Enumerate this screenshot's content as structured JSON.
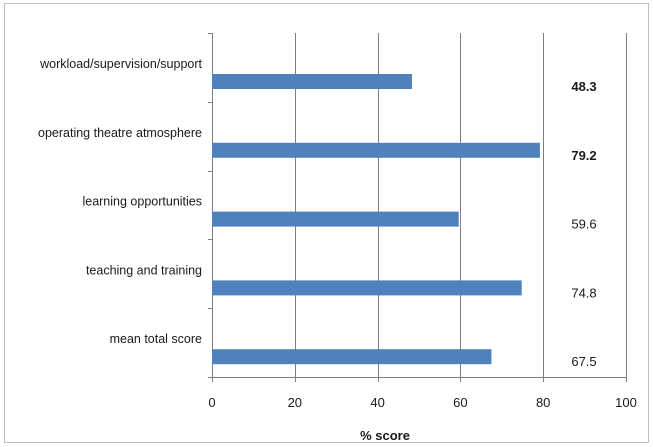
{
  "chart_data": {
    "type": "bar",
    "orientation": "horizontal",
    "categories": [
      "workload/supervision/support",
      "operating theatre atmosphere",
      "learning opportunities",
      "teaching and training",
      "mean total score"
    ],
    "values": [
      48.3,
      79.2,
      59.6,
      74.8,
      67.5
    ],
    "value_labels": [
      "48.3",
      "79.2",
      "59.6",
      "74.8",
      "67.5"
    ],
    "bold_value_labels": [
      true,
      true,
      false,
      false,
      false
    ],
    "xlabel": "% score",
    "ylabel": "",
    "title": "",
    "xlim": [
      0,
      100
    ],
    "xticks": [
      0,
      20,
      40,
      60,
      80,
      100
    ],
    "grid": "vertical",
    "legend": "none",
    "bar_color": "#4f81bd",
    "grid_color": "#7f7f7f"
  }
}
